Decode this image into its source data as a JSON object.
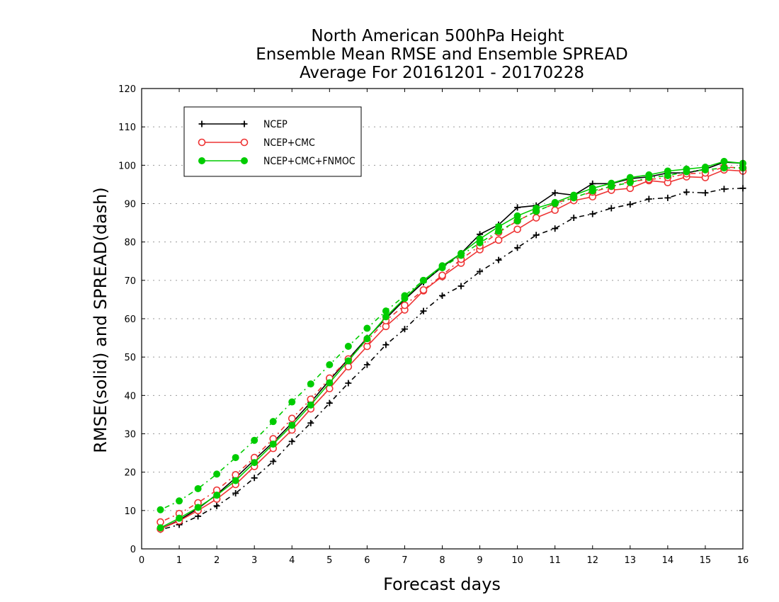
{
  "chart_data": {
    "type": "line",
    "title": [
      "North American 500hPa Height",
      "Ensemble Mean RMSE and Ensemble SPREAD",
      "Average For 20161201 - 20170228"
    ],
    "xlabel": "Forecast days",
    "ylabel": "RMSE(solid) and SPREAD(dash)",
    "xlim": [
      0,
      16
    ],
    "ylim": [
      0,
      120
    ],
    "xticks": [
      "0",
      "1",
      "2",
      "3",
      "4",
      "5",
      "6",
      "7",
      "8",
      "9",
      "10",
      "11",
      "12",
      "13",
      "14",
      "15",
      "16"
    ],
    "yticks": [
      "0",
      "10",
      "20",
      "30",
      "40",
      "50",
      "60",
      "70",
      "80",
      "90",
      "100",
      "110",
      "120"
    ],
    "grid": "horizontal-dotted",
    "legend_position": "top-left",
    "x": [
      0.5,
      1,
      1.5,
      2,
      2.5,
      3,
      3.5,
      4,
      4.5,
      5,
      5.5,
      6,
      6.5,
      7,
      7.5,
      8,
      8.5,
      9,
      9.5,
      10,
      10.5,
      11,
      11.5,
      12,
      12.5,
      13,
      13.5,
      14,
      14.5,
      15,
      15.5,
      16
    ],
    "series": [
      {
        "name": "NCEP",
        "color": "#000000",
        "marker": "plus",
        "rmse": [
          5.2,
          7.5,
          10.5,
          14.2,
          18.5,
          23.2,
          27.8,
          32.8,
          38.2,
          44,
          49.5,
          55,
          60,
          65,
          69.5,
          73.5,
          77,
          82,
          84.5,
          89,
          89.5,
          92.8,
          92.2,
          95.2,
          95.2,
          96.5,
          97,
          98,
          98,
          99,
          100.8,
          100.5
        ],
        "spread": [
          5,
          6.3,
          8.5,
          11.2,
          14.5,
          18.5,
          22.8,
          28,
          32.8,
          38,
          43.2,
          48,
          53.2,
          57.3,
          62,
          66,
          68.5,
          72.3,
          75.3,
          78.5,
          81.8,
          83.5,
          86.3,
          87.3,
          88.8,
          89.8,
          91.2,
          91.5,
          93,
          92.8,
          93.8,
          94
        ]
      },
      {
        "name": "NCEP+CMC",
        "color": "#ee3333",
        "marker": "circle-open",
        "rmse": [
          5.2,
          7.3,
          10,
          13,
          16.8,
          21.5,
          26.2,
          31,
          36.5,
          41.8,
          47.5,
          52.8,
          58,
          62.3,
          67.3,
          71,
          74.5,
          78,
          80.5,
          83.3,
          86.3,
          88.3,
          90.8,
          91.8,
          93.5,
          94,
          96,
          95.5,
          97,
          96.8,
          98.8,
          98.5
        ],
        "spread": [
          7,
          9.2,
          12,
          15.3,
          19.3,
          23.8,
          28.7,
          34,
          39,
          44.5,
          49.5,
          54.3,
          59.5,
          63.5,
          67.5,
          71.3,
          75.5,
          79,
          82.5,
          85.5,
          88,
          90,
          91.7,
          93,
          94.5,
          95.8,
          96.3,
          96.8,
          97.8,
          98,
          99.5,
          99.3
        ]
      },
      {
        "name": "NCEP+CMC+FNMOC",
        "color": "#00cc00",
        "marker": "circle-filled",
        "rmse": [
          5.5,
          8,
          10.8,
          14,
          17.8,
          22.5,
          27.3,
          32.2,
          37.5,
          43.3,
          49,
          54.8,
          60.5,
          65.3,
          70,
          73.8,
          77,
          80.8,
          84,
          86.8,
          88.8,
          90.3,
          92.2,
          94,
          95.3,
          96.8,
          97.5,
          98.5,
          99,
          99.5,
          101,
          100.5
        ],
        "spread": [
          10.2,
          12.5,
          15.7,
          19.5,
          23.8,
          28.3,
          33.2,
          38.3,
          43,
          48,
          52.8,
          57.5,
          62,
          66,
          70,
          73.3,
          76.5,
          79.8,
          82.8,
          85.5,
          88,
          90,
          91.5,
          93.3,
          94.5,
          95.5,
          96.8,
          97.3,
          98.3,
          98.8,
          99.3,
          99.3
        ]
      }
    ]
  }
}
